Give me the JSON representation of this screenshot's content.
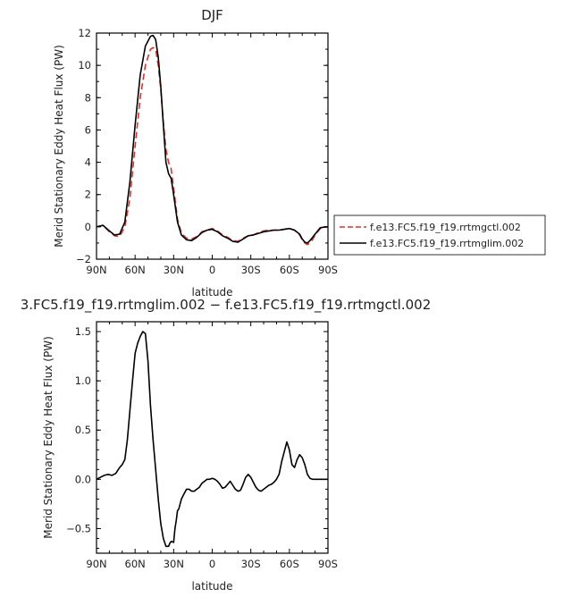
{
  "chart_data": [
    {
      "type": "line",
      "title": "DJF",
      "xlabel": "latitude",
      "ylabel": "Merid Stationary Eddy Heat Flux (PW)",
      "xlim": [
        90,
        -90
      ],
      "ylim": [
        -2,
        12
      ],
      "xticks": [
        90,
        60,
        30,
        0,
        -30,
        -60,
        -90
      ],
      "xtick_labels": [
        "90N",
        "60N",
        "30N",
        "0",
        "30S",
        "60S",
        "90S"
      ],
      "yticks": [
        -2,
        0,
        2,
        4,
        6,
        8,
        10,
        12
      ],
      "ytick_labels": [
        "−2",
        "0",
        "2",
        "4",
        "6",
        "8",
        "10",
        "12"
      ],
      "grid": false,
      "legend": "right",
      "series": [
        {
          "name": "f.e13.FC5.f19_f19.rrtmgctl.002",
          "color": "#e0302a",
          "dash": "dashed",
          "x": [
            90,
            85,
            80,
            76,
            72,
            68,
            64,
            60,
            56,
            52,
            48,
            46,
            44,
            42,
            40,
            38,
            36,
            34,
            32,
            30,
            27,
            24,
            20,
            16,
            12,
            8,
            4,
            0,
            -4,
            -8,
            -12,
            -16,
            -20,
            -24,
            -28,
            -32,
            -36,
            -40,
            -44,
            -48,
            -52,
            -56,
            -60,
            -64,
            -68,
            -70,
            -72,
            -74,
            -76,
            -78,
            -80,
            -84,
            -88,
            -90
          ],
          "y": [
            0.0,
            0.1,
            -0.3,
            -0.55,
            -0.6,
            0.0,
            1.8,
            5.0,
            8.0,
            10.0,
            11.0,
            11.1,
            11.0,
            10.0,
            8.5,
            6.5,
            4.8,
            4.0,
            3.6,
            2.4,
            0.5,
            -0.4,
            -0.7,
            -0.75,
            -0.6,
            -0.3,
            -0.2,
            -0.1,
            -0.25,
            -0.5,
            -0.65,
            -0.85,
            -0.9,
            -0.7,
            -0.55,
            -0.5,
            -0.35,
            -0.25,
            -0.2,
            -0.2,
            -0.2,
            -0.15,
            -0.1,
            -0.2,
            -0.5,
            -0.8,
            -1.0,
            -1.1,
            -1.0,
            -0.8,
            -0.5,
            -0.1,
            0.0,
            0.0
          ]
        },
        {
          "name": "f.e13.FC5.f19_f19.rrtmglim.002",
          "color": "#000000",
          "dash": "solid",
          "x": [
            90,
            85,
            80,
            76,
            72,
            68,
            64,
            60,
            56,
            52,
            48,
            46,
            44,
            42,
            40,
            38,
            36,
            34,
            32,
            30,
            27,
            24,
            20,
            16,
            12,
            8,
            4,
            0,
            -4,
            -8,
            -12,
            -16,
            -20,
            -24,
            -28,
            -32,
            -36,
            -40,
            -44,
            -48,
            -52,
            -56,
            -60,
            -64,
            -68,
            -70,
            -72,
            -74,
            -76,
            -78,
            -80,
            -84,
            -88,
            -90
          ],
          "y": [
            0.0,
            0.1,
            -0.25,
            -0.5,
            -0.45,
            0.3,
            2.8,
            6.3,
            9.4,
            11.2,
            11.8,
            11.85,
            11.6,
            10.5,
            8.7,
            6.3,
            4.0,
            3.3,
            3.0,
            2.0,
            0.3,
            -0.5,
            -0.8,
            -0.85,
            -0.65,
            -0.35,
            -0.2,
            -0.15,
            -0.3,
            -0.55,
            -0.7,
            -0.9,
            -0.95,
            -0.75,
            -0.55,
            -0.5,
            -0.4,
            -0.3,
            -0.25,
            -0.2,
            -0.2,
            -0.15,
            -0.1,
            -0.2,
            -0.45,
            -0.75,
            -0.95,
            -1.0,
            -0.85,
            -0.65,
            -0.45,
            -0.05,
            0.0,
            0.0
          ]
        }
      ]
    },
    {
      "type": "line",
      "title": "3.FC5.f19_f19.rrtmglim.002 − f.e13.FC5.f19_f19.rrtmgctl.002",
      "xlabel": "latitude",
      "ylabel": "Merid Stationary Eddy Heat Flux (PW)",
      "xlim": [
        90,
        -90
      ],
      "ylim": [
        -0.75,
        1.6
      ],
      "xticks": [
        90,
        60,
        30,
        0,
        -30,
        -60,
        -90
      ],
      "xtick_labels": [
        "90N",
        "60N",
        "30N",
        "0",
        "30S",
        "60S",
        "90S"
      ],
      "yticks": [
        -0.5,
        0,
        0.5,
        1,
        1.5
      ],
      "ytick_labels": [
        "−0.5",
        "0.0",
        "0.5",
        "1.0",
        "1.5"
      ],
      "grid": false,
      "series": [
        {
          "name": "",
          "color": "#000000",
          "dash": "solid",
          "x": [
            90,
            87,
            84,
            81,
            78,
            75,
            72,
            70,
            68,
            66,
            64,
            62,
            60,
            58,
            56,
            54,
            52,
            50,
            48,
            46,
            44,
            42,
            40,
            38,
            36,
            34,
            33,
            32,
            30,
            29,
            28,
            27,
            26,
            24,
            22,
            20,
            18,
            16,
            14,
            12,
            10,
            8,
            6,
            4,
            2,
            0,
            -2,
            -4,
            -6,
            -8,
            -10,
            -12,
            -14,
            -16,
            -18,
            -20,
            -22,
            -24,
            -26,
            -28,
            -30,
            -32,
            -34,
            -36,
            -38,
            -40,
            -42,
            -44,
            -46,
            -48,
            -50,
            -52,
            -54,
            -56,
            -58,
            -60,
            -62,
            -64,
            -66,
            -68,
            -70,
            -72,
            -74,
            -76,
            -78,
            -80,
            -82,
            -84,
            -86,
            -88,
            -90
          ],
          "y": [
            0.0,
            0.02,
            0.04,
            0.05,
            0.04,
            0.06,
            0.12,
            0.15,
            0.2,
            0.4,
            0.7,
            1.0,
            1.28,
            1.38,
            1.45,
            1.5,
            1.48,
            1.2,
            0.75,
            0.4,
            0.1,
            -0.2,
            -0.45,
            -0.6,
            -0.68,
            -0.68,
            -0.65,
            -0.63,
            -0.64,
            -0.5,
            -0.42,
            -0.32,
            -0.3,
            -0.2,
            -0.15,
            -0.1,
            -0.1,
            -0.12,
            -0.12,
            -0.1,
            -0.08,
            -0.04,
            -0.02,
            0.0,
            0.0,
            0.01,
            0.0,
            -0.02,
            -0.05,
            -0.09,
            -0.08,
            -0.05,
            -0.02,
            -0.06,
            -0.1,
            -0.12,
            -0.11,
            -0.05,
            0.02,
            0.05,
            0.02,
            -0.03,
            -0.08,
            -0.11,
            -0.12,
            -0.1,
            -0.08,
            -0.06,
            -0.05,
            -0.03,
            0.0,
            0.05,
            0.18,
            0.28,
            0.38,
            0.3,
            0.15,
            0.12,
            0.2,
            0.25,
            0.22,
            0.15,
            0.05,
            0.01,
            0.0,
            0.0,
            0.0,
            0.0,
            0.0,
            0.0,
            0.0
          ]
        }
      ]
    }
  ]
}
